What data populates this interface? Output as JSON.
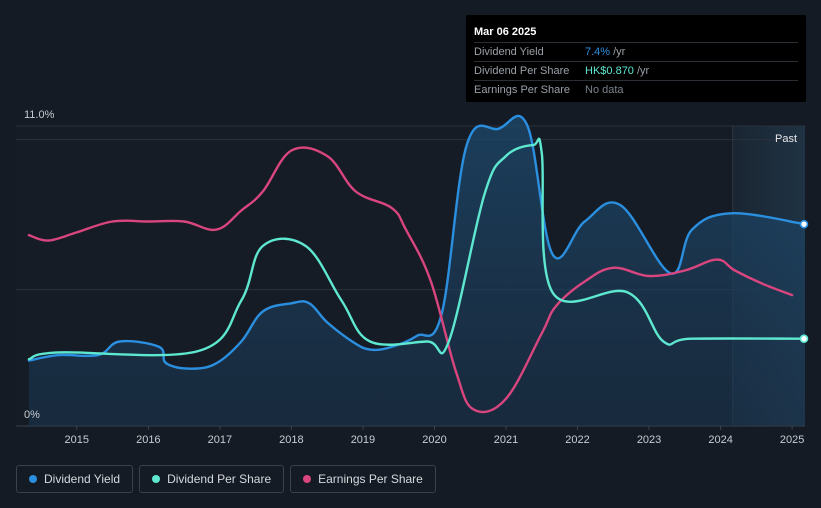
{
  "chart_data": {
    "type": "line",
    "y_max_label": "11.0%",
    "y_min_label": "0%",
    "ylim": [
      0,
      11
    ],
    "xlim": [
      2014.15,
      2025.18
    ],
    "x_ticks": [
      "2015",
      "2016",
      "2017",
      "2018",
      "2019",
      "2020",
      "2021",
      "2022",
      "2023",
      "2024",
      "2025"
    ],
    "past_label": "Past",
    "past_start": 2024.17,
    "grid": true,
    "series": [
      {
        "name": "Dividend Yield",
        "key": "yield",
        "color": "#2b8fe0",
        "area": true,
        "points": [
          [
            2014.33,
            2.4
          ],
          [
            2014.75,
            2.6
          ],
          [
            2015.3,
            2.6
          ],
          [
            2015.6,
            3.1
          ],
          [
            2016.15,
            2.9
          ],
          [
            2016.25,
            2.3
          ],
          [
            2016.6,
            2.1
          ],
          [
            2016.95,
            2.3
          ],
          [
            2017.3,
            3.1
          ],
          [
            2017.6,
            4.2
          ],
          [
            2018.0,
            4.5
          ],
          [
            2018.25,
            4.5
          ],
          [
            2018.5,
            3.8
          ],
          [
            2018.85,
            3.1
          ],
          [
            2019.1,
            2.8
          ],
          [
            2019.4,
            2.9
          ],
          [
            2019.75,
            3.3
          ],
          [
            2020.1,
            4.1
          ],
          [
            2020.45,
            10.3
          ],
          [
            2020.9,
            10.9
          ],
          [
            2021.3,
            11.0
          ],
          [
            2021.65,
            6.3
          ],
          [
            2022.1,
            7.5
          ],
          [
            2022.6,
            8.1
          ],
          [
            2023.3,
            5.6
          ],
          [
            2023.6,
            7.2
          ],
          [
            2024.15,
            7.8
          ],
          [
            2025.18,
            7.4
          ]
        ]
      },
      {
        "name": "Dividend Per Share",
        "key": "dps",
        "color": "#5ee8d0",
        "area": false,
        "points": [
          [
            2014.33,
            2.45
          ],
          [
            2014.75,
            2.7
          ],
          [
            2016.7,
            2.75
          ],
          [
            2017.3,
            4.6
          ],
          [
            2017.6,
            6.6
          ],
          [
            2018.2,
            6.6
          ],
          [
            2018.7,
            4.6
          ],
          [
            2019.1,
            3.1
          ],
          [
            2019.9,
            3.1
          ],
          [
            2020.2,
            3.1
          ],
          [
            2020.7,
            8.5
          ],
          [
            2021.0,
            9.9
          ],
          [
            2021.38,
            10.3
          ],
          [
            2021.5,
            10.0
          ],
          [
            2021.65,
            4.9
          ],
          [
            2022.7,
            4.9
          ],
          [
            2023.2,
            3.1
          ],
          [
            2023.6,
            3.2
          ],
          [
            2025.18,
            3.2
          ]
        ]
      },
      {
        "name": "Earnings Per Share",
        "key": "eps",
        "color": "#d9457e",
        "area": false,
        "points": [
          [
            2014.33,
            7.0
          ],
          [
            2014.6,
            6.8
          ],
          [
            2015.0,
            7.1
          ],
          [
            2015.5,
            7.5
          ],
          [
            2016.0,
            7.5
          ],
          [
            2016.5,
            7.5
          ],
          [
            2016.95,
            7.2
          ],
          [
            2017.3,
            7.9
          ],
          [
            2017.6,
            8.6
          ],
          [
            2018.0,
            10.1
          ],
          [
            2018.5,
            9.9
          ],
          [
            2018.9,
            8.6
          ],
          [
            2019.4,
            8.0
          ],
          [
            2019.6,
            7.2
          ],
          [
            2019.95,
            5.3
          ],
          [
            2020.3,
            2.0
          ],
          [
            2020.55,
            0.6
          ],
          [
            2021.0,
            1.0
          ],
          [
            2021.5,
            3.4
          ],
          [
            2021.7,
            4.4
          ],
          [
            2022.1,
            5.3
          ],
          [
            2022.5,
            5.8
          ],
          [
            2023.0,
            5.5
          ],
          [
            2023.5,
            5.7
          ],
          [
            2023.95,
            6.1
          ],
          [
            2024.2,
            5.7
          ],
          [
            2024.6,
            5.2
          ],
          [
            2025.0,
            4.8
          ]
        ]
      }
    ],
    "markers": [
      {
        "series": "yield",
        "x": 2025.18,
        "y": 7.4
      },
      {
        "series": "dps",
        "x": 2025.18,
        "y": 3.2
      }
    ]
  },
  "tooltip": {
    "date": "Mar 06 2025",
    "rows": [
      {
        "label": "Dividend Yield",
        "value": "7.4%",
        "unit": "/yr",
        "color": "#2b8fe0"
      },
      {
        "label": "Dividend Per Share",
        "value": "HK$0.870",
        "unit": "/yr",
        "color": "#5ee8d0"
      },
      {
        "label": "Earnings Per Share",
        "value": "No data",
        "unit": "",
        "color": "#7a818a"
      }
    ]
  },
  "legend": [
    {
      "label": "Dividend Yield",
      "color": "#2b8fe0"
    },
    {
      "label": "Dividend Per Share",
      "color": "#5ee8d0"
    },
    {
      "label": "Earnings Per Share",
      "color": "#d9457e"
    }
  ]
}
